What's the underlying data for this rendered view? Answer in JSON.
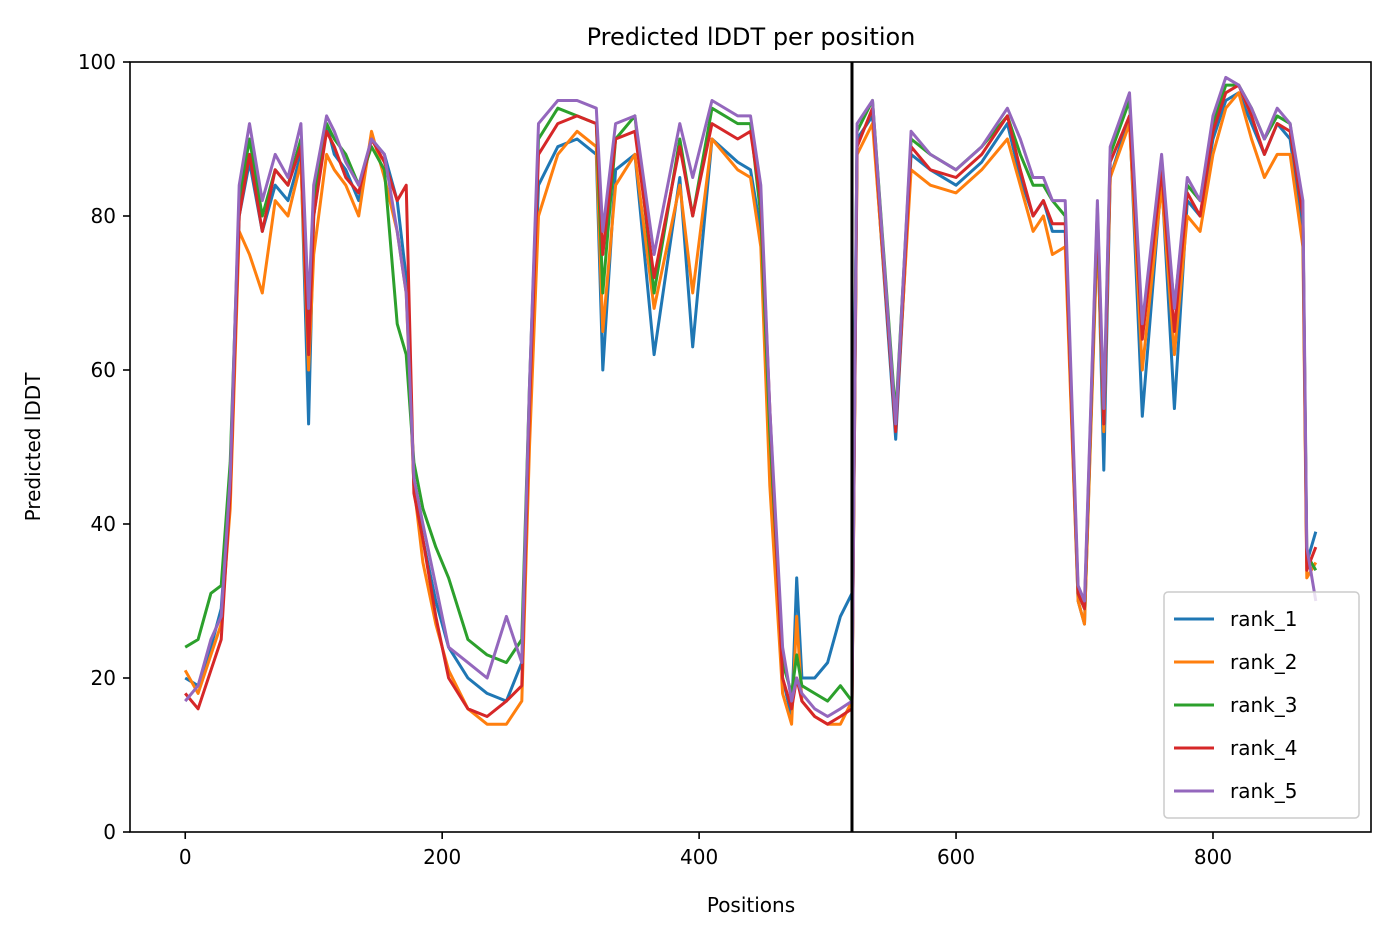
{
  "chart_data": {
    "type": "line",
    "title": "Predicted lDDT per position",
    "xlabel": "Positions",
    "ylabel": "Predicted lDDT",
    "xlim": [
      -43,
      923
    ],
    "ylim": [
      0,
      100
    ],
    "xticks": [
      0,
      200,
      400,
      600,
      800
    ],
    "yticks": [
      0,
      20,
      40,
      60,
      80,
      100
    ],
    "vline_x": 519,
    "grid": false,
    "legend_position": "lower right",
    "series": [
      {
        "name": "rank_1",
        "color": "#1f77b4",
        "x": [
          0,
          10,
          20,
          28,
          35,
          42,
          50,
          60,
          70,
          80,
          90,
          96,
          100,
          110,
          116,
          125,
          135,
          145,
          155,
          165,
          172,
          178,
          185,
          195,
          205,
          220,
          235,
          250,
          262,
          268,
          275,
          290,
          305,
          320,
          325,
          335,
          350,
          365,
          385,
          395,
          410,
          430,
          440,
          448,
          455,
          465,
          472,
          476,
          480,
          490,
          500,
          510,
          519,
          523,
          535,
          553,
          565,
          580,
          600,
          620,
          640,
          650,
          660,
          668,
          675,
          685,
          695,
          700,
          710,
          715,
          720,
          735,
          745,
          760,
          770,
          780,
          790,
          800,
          810,
          820,
          830,
          840,
          850,
          860,
          870,
          873,
          880
        ],
        "values": [
          20,
          19,
          24,
          29,
          45,
          80,
          87,
          78,
          84,
          82,
          88,
          53,
          80,
          92,
          88,
          86,
          82,
          90,
          88,
          82,
          72,
          45,
          38,
          30,
          24,
          20,
          18,
          17,
          22,
          55,
          84,
          89,
          90,
          88,
          60,
          86,
          88,
          62,
          85,
          63,
          90,
          87,
          86,
          78,
          50,
          20,
          15,
          33,
          20,
          20,
          22,
          28,
          31,
          90,
          93,
          51,
          88,
          86,
          84,
          87,
          92,
          85,
          80,
          82,
          78,
          78,
          30,
          27,
          80,
          47,
          85,
          93,
          54,
          85,
          55,
          82,
          80,
          90,
          95,
          96,
          92,
          88,
          92,
          90,
          78,
          35,
          39
        ]
      },
      {
        "name": "rank_2",
        "color": "#ff7f0e",
        "x": [
          0,
          10,
          20,
          28,
          35,
          42,
          50,
          60,
          70,
          80,
          90,
          96,
          100,
          110,
          116,
          125,
          135,
          145,
          155,
          165,
          172,
          178,
          185,
          195,
          205,
          220,
          235,
          250,
          262,
          268,
          275,
          290,
          305,
          320,
          325,
          335,
          350,
          365,
          385,
          395,
          410,
          430,
          440,
          448,
          455,
          465,
          472,
          476,
          480,
          490,
          500,
          510,
          519,
          523,
          535,
          553,
          565,
          580,
          600,
          620,
          640,
          650,
          660,
          668,
          675,
          685,
          695,
          700,
          710,
          715,
          720,
          735,
          745,
          760,
          770,
          780,
          790,
          800,
          810,
          820,
          830,
          840,
          850,
          860,
          870,
          873,
          880
        ],
        "values": [
          21,
          18,
          23,
          27,
          42,
          78,
          75,
          70,
          82,
          80,
          87,
          60,
          75,
          88,
          86,
          84,
          80,
          91,
          85,
          78,
          70,
          45,
          35,
          27,
          21,
          16,
          14,
          14,
          17,
          50,
          80,
          88,
          91,
          89,
          65,
          84,
          88,
          68,
          84,
          70,
          90,
          86,
          85,
          76,
          45,
          18,
          14,
          28,
          17,
          15,
          14,
          14,
          17,
          88,
          92,
          53,
          86,
          84,
          83,
          86,
          90,
          84,
          78,
          80,
          75,
          76,
          30,
          27,
          78,
          52,
          85,
          92,
          60,
          84,
          62,
          80,
          78,
          88,
          94,
          96,
          90,
          85,
          88,
          88,
          76,
          33,
          35
        ]
      },
      {
        "name": "rank_3",
        "color": "#2ca02c",
        "x": [
          0,
          10,
          20,
          28,
          35,
          42,
          50,
          60,
          70,
          80,
          90,
          96,
          100,
          110,
          116,
          125,
          135,
          145,
          155,
          165,
          172,
          178,
          185,
          195,
          205,
          220,
          235,
          250,
          262,
          268,
          275,
          290,
          305,
          320,
          325,
          335,
          350,
          365,
          385,
          395,
          410,
          430,
          440,
          448,
          455,
          465,
          472,
          476,
          480,
          490,
          500,
          510,
          519,
          523,
          535,
          553,
          565,
          580,
          600,
          620,
          640,
          650,
          660,
          668,
          675,
          685,
          695,
          700,
          710,
          715,
          720,
          735,
          745,
          760,
          770,
          780,
          790,
          800,
          810,
          820,
          830,
          840,
          850,
          860,
          870,
          873,
          880
        ],
        "values": [
          24,
          25,
          31,
          32,
          48,
          82,
          90,
          80,
          86,
          84,
          90,
          65,
          82,
          92,
          90,
          88,
          84,
          89,
          86,
          66,
          62,
          48,
          42,
          37,
          33,
          25,
          23,
          22,
          25,
          58,
          90,
          94,
          93,
          92,
          70,
          90,
          93,
          70,
          90,
          80,
          94,
          92,
          92,
          80,
          52,
          22,
          18,
          23,
          19,
          18,
          17,
          19,
          17,
          91,
          95,
          54,
          90,
          88,
          86,
          89,
          93,
          88,
          84,
          84,
          82,
          80,
          31,
          29,
          80,
          54,
          88,
          95,
          65,
          86,
          68,
          84,
          82,
          92,
          97,
          97,
          94,
          90,
          93,
          92,
          80,
          36,
          34
        ]
      },
      {
        "name": "rank_4",
        "color": "#d62728",
        "x": [
          0,
          10,
          20,
          28,
          35,
          42,
          50,
          60,
          70,
          80,
          90,
          96,
          100,
          110,
          116,
          125,
          135,
          145,
          155,
          165,
          172,
          178,
          185,
          195,
          205,
          220,
          235,
          250,
          262,
          268,
          275,
          290,
          305,
          320,
          325,
          335,
          350,
          365,
          385,
          395,
          410,
          430,
          440,
          448,
          455,
          465,
          472,
          476,
          480,
          490,
          500,
          510,
          519,
          523,
          535,
          553,
          565,
          580,
          600,
          620,
          640,
          650,
          660,
          668,
          675,
          685,
          695,
          700,
          710,
          715,
          720,
          735,
          745,
          760,
          770,
          780,
          790,
          800,
          810,
          820,
          830,
          840,
          850,
          860,
          870,
          873,
          880
        ],
        "values": [
          18,
          16,
          21,
          25,
          44,
          80,
          88,
          78,
          86,
          84,
          89,
          62,
          80,
          91,
          89,
          85,
          83,
          90,
          87,
          82,
          84,
          44,
          38,
          28,
          20,
          16,
          15,
          17,
          19,
          55,
          88,
          92,
          93,
          92,
          75,
          90,
          91,
          72,
          89,
          80,
          92,
          90,
          91,
          82,
          55,
          20,
          16,
          20,
          17,
          15,
          14,
          15,
          16,
          89,
          94,
          52,
          89,
          86,
          85,
          88,
          93,
          86,
          80,
          82,
          79,
          79,
          31,
          29,
          81,
          53,
          87,
          93,
          64,
          86,
          65,
          83,
          80,
          91,
          96,
          97,
          93,
          88,
          92,
          91,
          80,
          34,
          37
        ]
      },
      {
        "name": "rank_5",
        "color": "#9467bd",
        "x": [
          0,
          10,
          20,
          28,
          35,
          42,
          50,
          60,
          70,
          80,
          90,
          96,
          100,
          110,
          116,
          125,
          135,
          145,
          155,
          165,
          172,
          178,
          185,
          195,
          205,
          220,
          235,
          250,
          262,
          268,
          275,
          290,
          305,
          320,
          325,
          335,
          350,
          365,
          385,
          395,
          410,
          430,
          440,
          448,
          455,
          465,
          472,
          476,
          480,
          490,
          500,
          510,
          519,
          523,
          535,
          553,
          565,
          580,
          600,
          620,
          640,
          650,
          660,
          668,
          675,
          685,
          695,
          700,
          710,
          715,
          720,
          735,
          745,
          760,
          770,
          780,
          790,
          800,
          810,
          820,
          830,
          840,
          850,
          860,
          870,
          873,
          880
        ],
        "values": [
          17,
          19,
          25,
          28,
          46,
          84,
          92,
          82,
          88,
          85,
          92,
          68,
          84,
          93,
          91,
          87,
          84,
          90,
          88,
          78,
          70,
          46,
          40,
          32,
          24,
          22,
          20,
          28,
          22,
          58,
          92,
          95,
          95,
          94,
          78,
          92,
          93,
          75,
          92,
          85,
          95,
          93,
          93,
          84,
          55,
          24,
          17,
          20,
          18,
          16,
          15,
          16,
          17,
          92,
          95,
          53,
          91,
          88,
          86,
          89,
          94,
          90,
          85,
          85,
          82,
          82,
          32,
          30,
          82,
          55,
          89,
          96,
          66,
          88,
          68,
          85,
          82,
          93,
          98,
          97,
          94,
          90,
          94,
          92,
          82,
          37,
          30
        ]
      }
    ]
  }
}
